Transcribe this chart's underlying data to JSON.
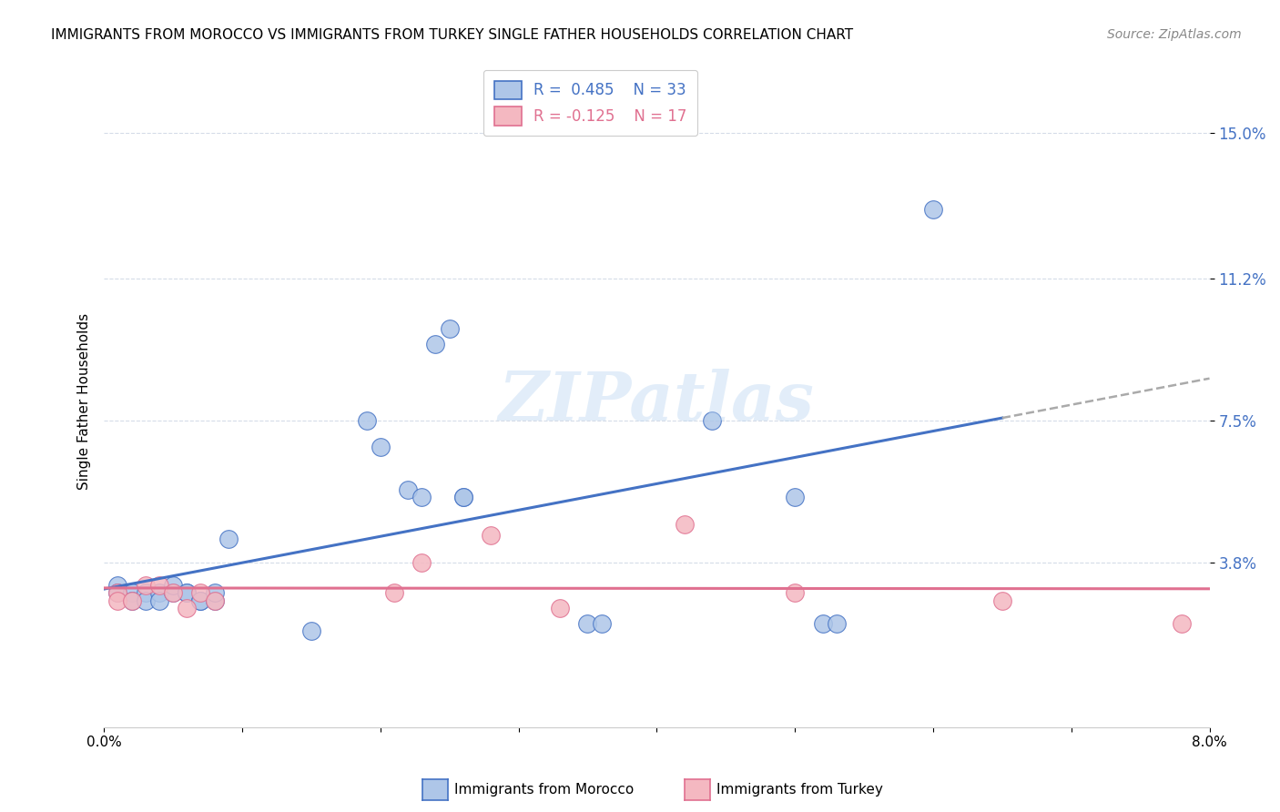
{
  "title": "IMMIGRANTS FROM MOROCCO VS IMMIGRANTS FROM TURKEY SINGLE FATHER HOUSEHOLDS CORRELATION CHART",
  "source": "Source: ZipAtlas.com",
  "ylabel": "Single Father Households",
  "xlim": [
    0.0,
    0.08
  ],
  "ylim": [
    -0.005,
    0.165
  ],
  "ytick_vals": [
    0.038,
    0.075,
    0.112,
    0.15
  ],
  "ytick_labels": [
    "3.8%",
    "7.5%",
    "11.2%",
    "15.0%"
  ],
  "xtick_vals": [
    0.0,
    0.01,
    0.02,
    0.03,
    0.04,
    0.05,
    0.06,
    0.07,
    0.08
  ],
  "xtick_labels": [
    "0.0%",
    "",
    "",
    "",
    "",
    "",
    "",
    "",
    "8.0%"
  ],
  "morocco_x": [
    0.001,
    0.001,
    0.002,
    0.002,
    0.003,
    0.003,
    0.004,
    0.004,
    0.005,
    0.005,
    0.006,
    0.006,
    0.007,
    0.007,
    0.008,
    0.008,
    0.009,
    0.015,
    0.019,
    0.02,
    0.022,
    0.023,
    0.024,
    0.025,
    0.026,
    0.026,
    0.035,
    0.036,
    0.044,
    0.05,
    0.052,
    0.053,
    0.06
  ],
  "morocco_y": [
    0.032,
    0.03,
    0.03,
    0.028,
    0.03,
    0.028,
    0.03,
    0.028,
    0.03,
    0.032,
    0.03,
    0.03,
    0.028,
    0.028,
    0.028,
    0.03,
    0.044,
    0.02,
    0.075,
    0.068,
    0.057,
    0.055,
    0.095,
    0.099,
    0.055,
    0.055,
    0.022,
    0.022,
    0.075,
    0.055,
    0.022,
    0.022,
    0.13
  ],
  "turkey_x": [
    0.001,
    0.001,
    0.002,
    0.003,
    0.004,
    0.005,
    0.006,
    0.007,
    0.008,
    0.021,
    0.023,
    0.028,
    0.033,
    0.042,
    0.05,
    0.065,
    0.078
  ],
  "turkey_y": [
    0.03,
    0.028,
    0.028,
    0.032,
    0.032,
    0.03,
    0.026,
    0.03,
    0.028,
    0.03,
    0.038,
    0.045,
    0.026,
    0.048,
    0.03,
    0.028,
    0.022
  ],
  "morocco_R": 0.485,
  "morocco_N": 33,
  "turkey_R": -0.125,
  "turkey_N": 17,
  "morocco_color": "#aec6e8",
  "turkey_color": "#f4b8c1",
  "morocco_line_color": "#4472c4",
  "turkey_line_color": "#e07090",
  "title_fontsize": 11,
  "source_fontsize": 10,
  "background_color": "#ffffff",
  "grid_color": "#d5dce8"
}
